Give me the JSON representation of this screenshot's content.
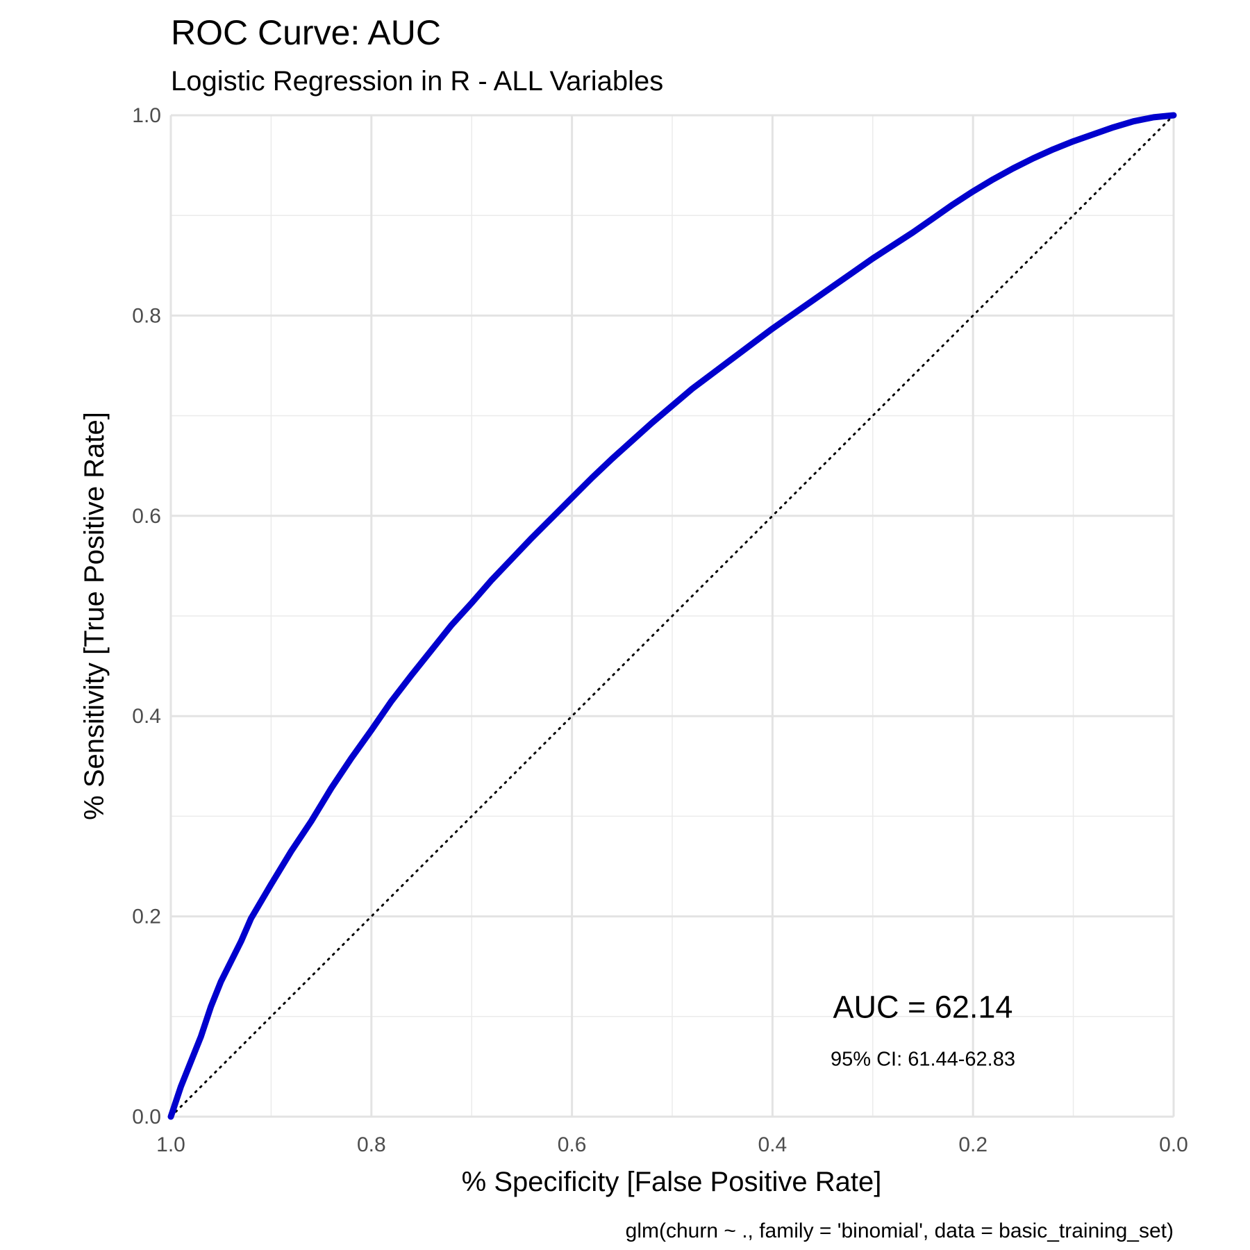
{
  "chart_data": {
    "type": "line",
    "title": "ROC Curve: AUC",
    "subtitle": "Logistic Regression in R - ALL Variables",
    "xlabel": "% Specificity [False Positive Rate]",
    "ylabel": "% Sensitivity [True Positive Rate]",
    "caption": "glm(churn ~ ., family = 'binomial', data = basic_training_set)",
    "xlim": [
      1.0,
      0.0
    ],
    "ylim": [
      0.0,
      1.0
    ],
    "x_reversed": true,
    "grid": true,
    "x_ticks": [
      "1.0",
      "0.8",
      "0.6",
      "0.4",
      "0.2",
      "0.0"
    ],
    "x_tick_values": [
      1.0,
      0.8,
      0.6,
      0.4,
      0.2,
      0.0
    ],
    "y_ticks": [
      "0.0",
      "0.2",
      "0.4",
      "0.6",
      "0.8",
      "1.0"
    ],
    "y_tick_values": [
      0.0,
      0.2,
      0.4,
      0.6,
      0.8,
      1.0
    ],
    "series": [
      {
        "color": "#0000CD",
        "x": [
          1.0,
          0.99,
          0.98,
          0.97,
          0.96,
          0.95,
          0.94,
          0.93,
          0.92,
          0.91,
          0.9,
          0.88,
          0.86,
          0.84,
          0.82,
          0.8,
          0.78,
          0.76,
          0.74,
          0.72,
          0.7,
          0.68,
          0.66,
          0.64,
          0.62,
          0.6,
          0.58,
          0.56,
          0.54,
          0.52,
          0.5,
          0.48,
          0.46,
          0.44,
          0.42,
          0.4,
          0.38,
          0.36,
          0.34,
          0.32,
          0.3,
          0.28,
          0.26,
          0.24,
          0.22,
          0.2,
          0.18,
          0.16,
          0.14,
          0.12,
          0.1,
          0.08,
          0.06,
          0.04,
          0.02,
          0.0
        ],
        "y": [
          0.0,
          0.03,
          0.055,
          0.08,
          0.11,
          0.135,
          0.155,
          0.175,
          0.198,
          0.215,
          0.232,
          0.265,
          0.295,
          0.328,
          0.358,
          0.386,
          0.415,
          0.441,
          0.466,
          0.491,
          0.513,
          0.536,
          0.557,
          0.578,
          0.598,
          0.618,
          0.638,
          0.657,
          0.675,
          0.693,
          0.71,
          0.727,
          0.742,
          0.757,
          0.772,
          0.787,
          0.801,
          0.815,
          0.829,
          0.843,
          0.857,
          0.87,
          0.883,
          0.897,
          0.911,
          0.924,
          0.936,
          0.947,
          0.957,
          0.966,
          0.974,
          0.981,
          0.988,
          0.994,
          0.998,
          1.0
        ]
      }
    ],
    "reference_line": {
      "x": [
        1.0,
        0.0
      ],
      "y": [
        0.0,
        1.0
      ],
      "style": "dotted",
      "color": "#000000"
    },
    "annotations": {
      "auc": "AUC = 62.14",
      "ci": "95% CI: 61.44-62.83"
    },
    "annotation_position": {
      "x": 0.25,
      "y": 0.11,
      "ci_y": 0.058
    }
  }
}
